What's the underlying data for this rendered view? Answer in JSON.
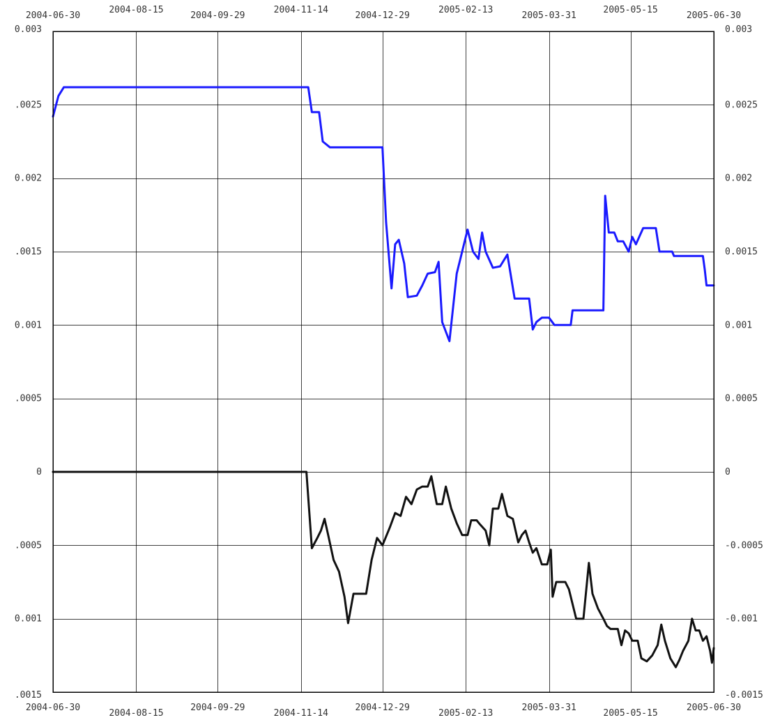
{
  "chart_data": {
    "type": "line",
    "title": "",
    "xlabel": "",
    "ylabel": "",
    "grid": true,
    "x_axis": {
      "type": "date",
      "range": [
        "2004-06-30",
        "2005-06-30"
      ],
      "ticks": [
        "2004-06-30",
        "2004-08-15",
        "2004-09-29",
        "2004-11-14",
        "2004-12-29",
        "2005-02-13",
        "2005-03-31",
        "2005-05-15",
        "2005-06-30"
      ]
    },
    "y_axis": {
      "range": [
        -0.0015,
        0.003
      ],
      "left_ticks": [
        {
          "value": 0.003,
          "label": "0.003"
        },
        {
          "value": 0.0025,
          "label": ".0025"
        },
        {
          "value": 0.002,
          "label": "0.002"
        },
        {
          "value": 0.0015,
          "label": ".0015"
        },
        {
          "value": 0.001,
          "label": "0.001"
        },
        {
          "value": 0.0005,
          "label": ".0005"
        },
        {
          "value": 0,
          "label": "0"
        },
        {
          "value": -0.0005,
          "label": ".0005"
        },
        {
          "value": -0.001,
          "label": "0.001"
        },
        {
          "value": -0.0015,
          "label": ".0015"
        }
      ],
      "right_ticks": [
        {
          "value": 0.003,
          "label": "0.003"
        },
        {
          "value": 0.0025,
          "label": "0.0025"
        },
        {
          "value": 0.002,
          "label": "0.002"
        },
        {
          "value": 0.0015,
          "label": "0.0015"
        },
        {
          "value": 0.001,
          "label": "0.001"
        },
        {
          "value": 0.0005,
          "label": "0.0005"
        },
        {
          "value": 0,
          "label": "0"
        },
        {
          "value": -0.0005,
          "label": "-0.0005"
        },
        {
          "value": -0.001,
          "label": "-0.001"
        },
        {
          "value": -0.0015,
          "label": "-0.0015"
        }
      ]
    },
    "series": [
      {
        "color": "#1a1aff",
        "points": [
          [
            "2004-06-30",
            0.00242
          ],
          [
            "2004-07-03",
            0.00256
          ],
          [
            "2004-07-06",
            0.00262
          ],
          [
            "2004-11-18",
            0.00262
          ],
          [
            "2004-11-20",
            0.00245
          ],
          [
            "2004-11-24",
            0.00245
          ],
          [
            "2004-11-26",
            0.00225
          ],
          [
            "2004-11-30",
            0.00221
          ],
          [
            "2004-12-29",
            0.00221
          ],
          [
            "2004-12-31",
            0.0017
          ],
          [
            "2005-01-03",
            0.00125
          ],
          [
            "2005-01-05",
            0.00155
          ],
          [
            "2005-01-07",
            0.00158
          ],
          [
            "2005-01-10",
            0.00142
          ],
          [
            "2005-01-12",
            0.00119
          ],
          [
            "2005-01-17",
            0.0012
          ],
          [
            "2005-01-20",
            0.00127
          ],
          [
            "2005-01-23",
            0.00135
          ],
          [
            "2005-01-27",
            0.00136
          ],
          [
            "2005-01-29",
            0.00143
          ],
          [
            "2005-01-31",
            0.00102
          ],
          [
            "2005-02-04",
            0.00089
          ],
          [
            "2005-02-08",
            0.00135
          ],
          [
            "2005-02-11",
            0.0015
          ],
          [
            "2005-02-14",
            0.00165
          ],
          [
            "2005-02-17",
            0.0015
          ],
          [
            "2005-02-20",
            0.00145
          ],
          [
            "2005-02-22",
            0.00163
          ],
          [
            "2005-02-24",
            0.0015
          ],
          [
            "2005-02-28",
            0.00139
          ],
          [
            "2005-03-04",
            0.0014
          ],
          [
            "2005-03-08",
            0.00148
          ],
          [
            "2005-03-12",
            0.00118
          ],
          [
            "2005-03-20",
            0.00118
          ],
          [
            "2005-03-22",
            0.00097
          ],
          [
            "2005-03-24",
            0.00102
          ],
          [
            "2005-03-27",
            0.00105
          ],
          [
            "2005-03-31",
            0.00105
          ],
          [
            "2005-04-03",
            0.001
          ],
          [
            "2005-04-12",
            0.001
          ],
          [
            "2005-04-13",
            0.0011
          ],
          [
            "2005-04-30",
            0.0011
          ],
          [
            "2005-05-01",
            0.00188
          ],
          [
            "2005-05-03",
            0.00163
          ],
          [
            "2005-05-06",
            0.00163
          ],
          [
            "2005-05-08",
            0.00157
          ],
          [
            "2005-05-11",
            0.00157
          ],
          [
            "2005-05-14",
            0.0015
          ],
          [
            "2005-05-16",
            0.0016
          ],
          [
            "2005-05-18",
            0.00155
          ],
          [
            "2005-05-22",
            0.00166
          ],
          [
            "2005-05-29",
            0.00166
          ],
          [
            "2005-05-31",
            0.0015
          ],
          [
            "2005-06-07",
            0.0015
          ],
          [
            "2005-06-08",
            0.00147
          ],
          [
            "2005-06-24",
            0.00147
          ],
          [
            "2005-06-25",
            0.00138
          ],
          [
            "2005-06-26",
            0.00127
          ],
          [
            "2005-06-30",
            0.00127
          ]
        ]
      },
      {
        "color": "#111111",
        "points": [
          [
            "2004-06-30",
            0.0
          ],
          [
            "2004-11-17",
            0.0
          ],
          [
            "2004-11-20",
            -0.00052
          ],
          [
            "2004-11-23",
            -0.00045
          ],
          [
            "2004-11-25",
            -0.0004
          ],
          [
            "2004-11-27",
            -0.00032
          ],
          [
            "2004-11-29",
            -0.00043
          ],
          [
            "2004-12-02",
            -0.0006
          ],
          [
            "2004-12-05",
            -0.00068
          ],
          [
            "2004-12-08",
            -0.00085
          ],
          [
            "2004-12-10",
            -0.00103
          ],
          [
            "2004-12-13",
            -0.00083
          ],
          [
            "2004-12-20",
            -0.00083
          ],
          [
            "2004-12-23",
            -0.0006
          ],
          [
            "2004-12-26",
            -0.00045
          ],
          [
            "2004-12-29",
            -0.0005
          ],
          [
            "2005-01-02",
            -0.00038
          ],
          [
            "2005-01-05",
            -0.00028
          ],
          [
            "2005-01-08",
            -0.0003
          ],
          [
            "2005-01-11",
            -0.00017
          ],
          [
            "2005-01-14",
            -0.00022
          ],
          [
            "2005-01-17",
            -0.00012
          ],
          [
            "2005-01-20",
            -0.0001
          ],
          [
            "2005-01-23",
            -0.0001
          ],
          [
            "2005-01-25",
            -3e-05
          ],
          [
            "2005-01-28",
            -0.00022
          ],
          [
            "2005-01-31",
            -0.00022
          ],
          [
            "2005-02-02",
            -0.0001
          ],
          [
            "2005-02-05",
            -0.00025
          ],
          [
            "2005-02-08",
            -0.00035
          ],
          [
            "2005-02-11",
            -0.00043
          ],
          [
            "2005-02-14",
            -0.00043
          ],
          [
            "2005-02-16",
            -0.00033
          ],
          [
            "2005-02-19",
            -0.00033
          ],
          [
            "2005-02-21",
            -0.00036
          ],
          [
            "2005-02-24",
            -0.0004
          ],
          [
            "2005-02-26",
            -0.0005
          ],
          [
            "2005-02-28",
            -0.00025
          ],
          [
            "2005-03-03",
            -0.00025
          ],
          [
            "2005-03-05",
            -0.00015
          ],
          [
            "2005-03-08",
            -0.0003
          ],
          [
            "2005-03-11",
            -0.00032
          ],
          [
            "2005-03-14",
            -0.00048
          ],
          [
            "2005-03-16",
            -0.00043
          ],
          [
            "2005-03-18",
            -0.0004
          ],
          [
            "2005-03-20",
            -0.00048
          ],
          [
            "2005-03-22",
            -0.00055
          ],
          [
            "2005-03-24",
            -0.00052
          ],
          [
            "2005-03-27",
            -0.00063
          ],
          [
            "2005-03-30",
            -0.00063
          ],
          [
            "2005-04-01",
            -0.00053
          ],
          [
            "2005-04-02",
            -0.00085
          ],
          [
            "2005-04-04",
            -0.00075
          ],
          [
            "2005-04-09",
            -0.00075
          ],
          [
            "2005-04-11",
            -0.0008
          ],
          [
            "2005-04-15",
            -0.001
          ],
          [
            "2005-04-19",
            -0.001
          ],
          [
            "2005-04-22",
            -0.00062
          ],
          [
            "2005-04-24",
            -0.00083
          ],
          [
            "2005-04-27",
            -0.00093
          ],
          [
            "2005-04-30",
            -0.001
          ],
          [
            "2005-05-02",
            -0.00105
          ],
          [
            "2005-05-04",
            -0.00107
          ],
          [
            "2005-05-08",
            -0.00107
          ],
          [
            "2005-05-10",
            -0.00118
          ],
          [
            "2005-05-12",
            -0.00108
          ],
          [
            "2005-05-14",
            -0.0011
          ],
          [
            "2005-05-16",
            -0.00115
          ],
          [
            "2005-05-19",
            -0.00115
          ],
          [
            "2005-05-21",
            -0.00127
          ],
          [
            "2005-05-24",
            -0.00129
          ],
          [
            "2005-05-27",
            -0.00125
          ],
          [
            "2005-05-30",
            -0.00118
          ],
          [
            "2005-06-01",
            -0.00104
          ],
          [
            "2005-06-03",
            -0.00115
          ],
          [
            "2005-06-06",
            -0.00127
          ],
          [
            "2005-06-09",
            -0.00133
          ],
          [
            "2005-06-11",
            -0.00128
          ],
          [
            "2005-06-13",
            -0.00122
          ],
          [
            "2005-06-16",
            -0.00115
          ],
          [
            "2005-06-18",
            -0.001
          ],
          [
            "2005-06-20",
            -0.00108
          ],
          [
            "2005-06-22",
            -0.00108
          ],
          [
            "2005-06-24",
            -0.00115
          ],
          [
            "2005-06-26",
            -0.00112
          ],
          [
            "2005-06-28",
            -0.00122
          ],
          [
            "2005-06-29",
            -0.0013
          ],
          [
            "2005-06-30",
            -0.0012
          ]
        ]
      }
    ]
  }
}
